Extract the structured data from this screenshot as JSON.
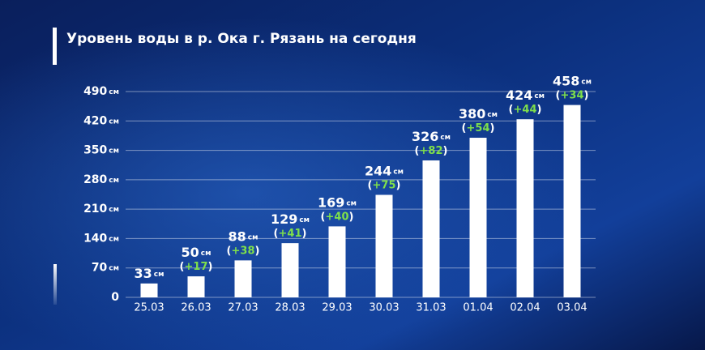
{
  "chart_data": {
    "type": "bar",
    "title": "Уровень воды в р. Ока г. Рязань на сегодня",
    "categories": [
      "25.03",
      "26.03",
      "27.03",
      "28.03",
      "29.03",
      "30.03",
      "31.03",
      "01.04",
      "02.04",
      "03.04"
    ],
    "values": [
      33,
      50,
      88,
      129,
      169,
      244,
      326,
      380,
      424,
      458
    ],
    "value_labels": [
      "33см",
      "50см",
      "88см",
      "129см",
      "169см",
      "244см",
      "326см",
      "380см",
      "424см",
      "458см"
    ],
    "change_labels": [
      null,
      "(+17)",
      "(+38)",
      "(+41)",
      "(+40)",
      "(+75)",
      "(+82)",
      "(+54)",
      "(+44)",
      "(+34)"
    ],
    "color": "#ffffff",
    "change_color": "#7fe04a",
    "ylim": [
      0,
      490
    ],
    "yticks": [
      0,
      {
        "value": 70,
        "label": "70см"
      },
      {
        "value": 140,
        "label": "140см"
      },
      {
        "value": 210,
        "label": "210см"
      },
      {
        "value": 280,
        "label": "280см"
      },
      {
        "value": 350,
        "label": "350см"
      },
      {
        "value": 420,
        "label": "420см"
      },
      {
        "value": 490,
        "label": "490см"
      }
    ],
    "grid": true
  }
}
